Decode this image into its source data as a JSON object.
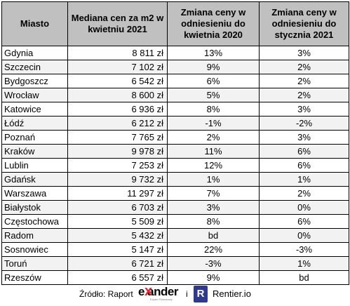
{
  "table": {
    "headers": [
      "Miasto",
      "Mediana cen za m2 w kwietniu 2021",
      "Zmiana ceny w odniesieniu do kwietnia 2020",
      "Zmiana ceny w odniesieniu do stycznia 2021"
    ],
    "rows": [
      {
        "city": "Gdynia",
        "price": "8 811 zł",
        "yoy": "13%",
        "ytd": "3%"
      },
      {
        "city": "Szczecin",
        "price": "7 102 zł",
        "yoy": "9%",
        "ytd": "2%"
      },
      {
        "city": "Bydgoszcz",
        "price": "6 542 zł",
        "yoy": "6%",
        "ytd": "2%"
      },
      {
        "city": "Wrocław",
        "price": "8 600 zł",
        "yoy": "5%",
        "ytd": "2%"
      },
      {
        "city": "Katowice",
        "price": "6 936 zł",
        "yoy": "8%",
        "ytd": "3%"
      },
      {
        "city": "Łódź",
        "price": "6 212 zł",
        "yoy": "-1%",
        "ytd": "-2%"
      },
      {
        "city": "Poznań",
        "price": "7 765 zł",
        "yoy": "2%",
        "ytd": "3%"
      },
      {
        "city": "Kraków",
        "price": "9 978 zł",
        "yoy": "11%",
        "ytd": "6%"
      },
      {
        "city": "Lublin",
        "price": "7 253 zł",
        "yoy": "12%",
        "ytd": "6%"
      },
      {
        "city": "Gdańsk",
        "price": "9 732 zł",
        "yoy": "1%",
        "ytd": "1%"
      },
      {
        "city": "Warszawa",
        "price": "11 297 zł",
        "yoy": "7%",
        "ytd": "2%"
      },
      {
        "city": "Białystok",
        "price": "6 703 zł",
        "yoy": "3%",
        "ytd": "0%"
      },
      {
        "city": "Częstochowa",
        "price": "5 509 zł",
        "yoy": "8%",
        "ytd": "6%"
      },
      {
        "city": "Radom",
        "price": "5 432 zł",
        "yoy": "bd",
        "ytd": "0%"
      },
      {
        "city": "Sosnowiec",
        "price": "5 147 zł",
        "yoy": "22%",
        "ytd": "-3%"
      },
      {
        "city": "Toruń",
        "price": "6 721 zł",
        "yoy": "-3%",
        "ytd": "1%"
      },
      {
        "city": "Rzeszów",
        "price": "6 557 zł",
        "yoy": "9%",
        "ytd": "bd"
      }
    ]
  },
  "footer": {
    "source_label": "Źródło: Raport",
    "expander_text": "e ander",
    "expander_x": "x",
    "expander_tagline": "Expert Finansowy",
    "and_word": "i",
    "rentier_icon_letter": "R",
    "rentier_name": "Rentier.io"
  },
  "colors": {
    "header_bg": "#c0c0c0",
    "alt_row_bg": "#f2f2f2",
    "expander_red": "#e3262b",
    "rentier_blue": "#2e3a8c"
  }
}
